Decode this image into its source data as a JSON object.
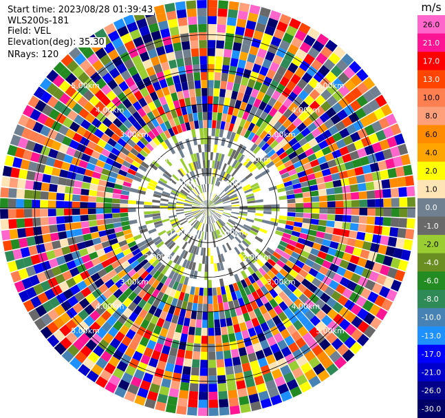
{
  "header": {
    "start_time": "Start time: 2023/08/28 01:39:43",
    "instrument": "WLS200s-181",
    "field": "Field: VEL",
    "elevation": "Elevation(deg): 35.30",
    "nrays": "NRays: 120"
  },
  "chart_data": {
    "type": "heatmap",
    "projection": "polar-ppi",
    "field": "VEL",
    "unit": "m/s",
    "n_rays": 120,
    "max_range_km": 6.0,
    "range_ring_labels": [
      "1.00km",
      "2.00km",
      "3.00km",
      "4.00km",
      "5.00km"
    ],
    "colorbar": {
      "unit": "m/s",
      "ticks": [
        "26.0",
        "21.0",
        "17.0",
        "13.0",
        "10.0",
        "8.0",
        "6.0",
        "4.0",
        "2.0",
        "1.0",
        "0.0",
        "-1.0",
        "-2.0",
        "-4.0",
        "-6.0",
        "-8.0",
        "-10.0",
        "-13.0",
        "-17.0",
        "-21.0",
        "-26.0",
        "-30.0"
      ],
      "colors": [
        "#ff66cc",
        "#ff1493",
        "#ff0000",
        "#ff4500",
        "#ff7f50",
        "#ffa07a",
        "#ff8c00",
        "#ffa500",
        "#ffff00",
        "#ffe4b5",
        "#708090",
        "#696969",
        "#9acd32",
        "#6b8e23",
        "#228b22",
        "#2e8b57",
        "#4682b4",
        "#1e90ff",
        "#0000ff",
        "#0000cd",
        "#00008b",
        "#000066"
      ]
    }
  }
}
